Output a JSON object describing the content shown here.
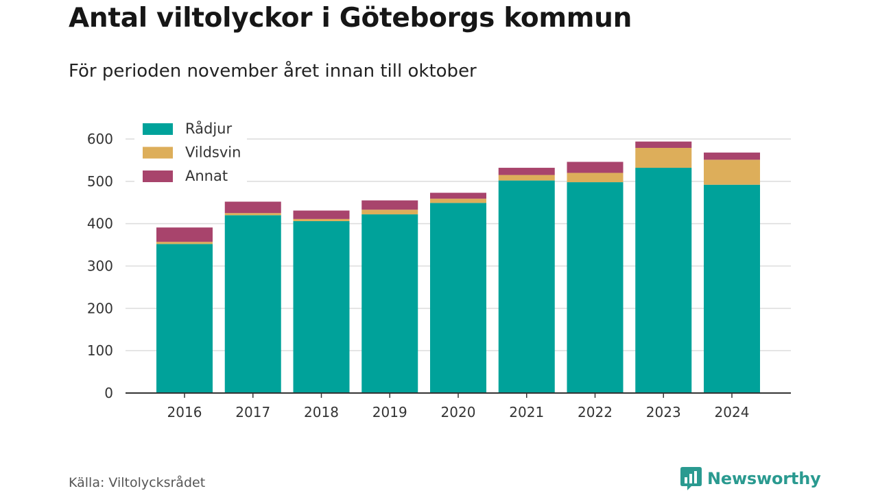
{
  "title": "Antal viltolyckor i Göteborgs kommun",
  "subtitle": "För perioden november året innan till oktober",
  "source": "Källa: Viltolycksrådet",
  "brand": {
    "name": "Newsworthy",
    "icon": "bar-chart-speech-bubble-icon"
  },
  "colors": {
    "radjur": "#00a29a",
    "vildsvin": "#ddae5a",
    "annat": "#a8446c",
    "axis": "#333333",
    "grid": "#dcdcdc",
    "brand": "#2a9a90"
  },
  "chart_data": {
    "type": "bar",
    "stacked": true,
    "categories": [
      "2016",
      "2017",
      "2018",
      "2019",
      "2020",
      "2021",
      "2022",
      "2023",
      "2024"
    ],
    "series": [
      {
        "name": "Rådjur",
        "values": [
          352,
          420,
          406,
          422,
          449,
          502,
          498,
          532,
          492
        ]
      },
      {
        "name": "Vildsvin",
        "values": [
          5,
          5,
          5,
          11,
          10,
          13,
          22,
          47,
          59
        ]
      },
      {
        "name": "Annat",
        "values": [
          34,
          27,
          20,
          22,
          14,
          17,
          26,
          15,
          17
        ]
      }
    ],
    "ylim": [
      0,
      600
    ],
    "yticks": [
      0,
      100,
      200,
      300,
      400,
      500,
      600
    ],
    "xlabel": "",
    "ylabel": "",
    "grid": true,
    "legend": "top-left"
  }
}
